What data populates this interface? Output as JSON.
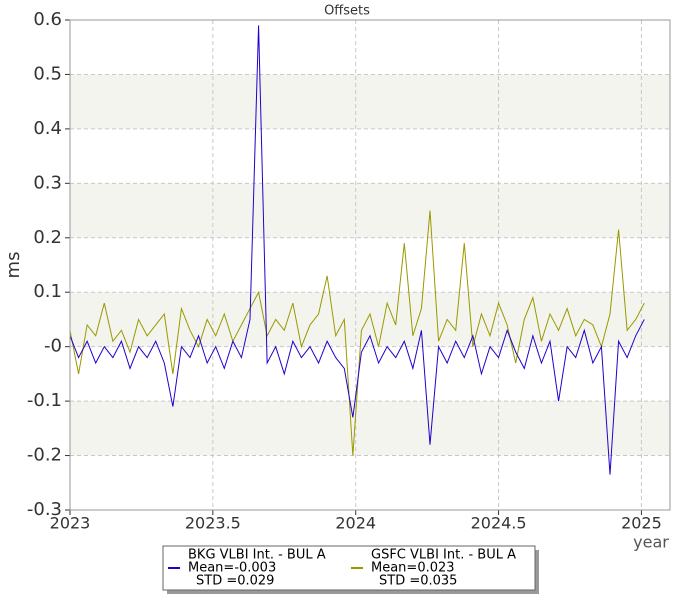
{
  "chart_data": {
    "type": "line",
    "title": "Offsets",
    "x_label": "year",
    "y_label": "ms",
    "xlim": [
      2023,
      2025.1
    ],
    "ylim": [
      -0.3,
      0.6
    ],
    "xticks": [
      2023,
      2023.5,
      2024,
      2024.5,
      2025
    ],
    "yticks": [
      0.6,
      0.5,
      0.4,
      0.3,
      0.2,
      0.1,
      {
        "value": 0,
        "label": "-0"
      },
      -0.1,
      -0.2,
      -0.3
    ],
    "grid": true,
    "legend": "bottom",
    "x": [
      2023.0,
      2023.03,
      2023.06,
      2023.09,
      2023.12,
      2023.15,
      2023.18,
      2023.21,
      2023.24,
      2023.27,
      2023.3,
      2023.33,
      2023.36,
      2023.39,
      2023.42,
      2023.45,
      2023.48,
      2023.51,
      2023.54,
      2023.57,
      2023.6,
      2023.63,
      2023.66,
      2023.69,
      2023.72,
      2023.75,
      2023.78,
      2023.81,
      2023.84,
      2023.87,
      2023.9,
      2023.93,
      2023.96,
      2023.99,
      2024.02,
      2024.05,
      2024.08,
      2024.11,
      2024.14,
      2024.17,
      2024.2,
      2024.23,
      2024.26,
      2024.29,
      2024.32,
      2024.35,
      2024.38,
      2024.41,
      2024.44,
      2024.47,
      2024.5,
      2024.53,
      2024.56,
      2024.59,
      2024.62,
      2024.65,
      2024.68,
      2024.71,
      2024.74,
      2024.77,
      2024.8,
      2024.83,
      2024.86,
      2024.89,
      2024.92,
      2024.95,
      2024.98,
      2025.01
    ],
    "series": [
      {
        "name": "GSFC VLBI Int. - BUL A",
        "mean_label": "Mean=0.023",
        "std_label": "STD =0.035",
        "color": "#999900",
        "values": [
          0.03,
          -0.05,
          0.04,
          0.02,
          0.08,
          0.01,
          0.03,
          -0.01,
          0.05,
          0.02,
          0.04,
          0.06,
          -0.05,
          0.07,
          0.03,
          0.0,
          0.05,
          0.02,
          0.06,
          0.01,
          0.04,
          0.07,
          0.1,
          0.02,
          0.05,
          0.03,
          0.08,
          0.0,
          0.04,
          0.06,
          0.13,
          0.02,
          0.05,
          -0.2,
          0.03,
          0.06,
          0.0,
          0.08,
          0.04,
          0.19,
          0.02,
          0.07,
          0.25,
          0.01,
          0.05,
          0.03,
          0.19,
          0.0,
          0.06,
          0.02,
          0.08,
          0.04,
          -0.03,
          0.05,
          0.09,
          0.01,
          0.06,
          0.03,
          0.07,
          0.02,
          0.05,
          0.04,
          0.0,
          0.06,
          0.215,
          0.03,
          0.05,
          0.08
        ]
      },
      {
        "name": "BKG VLBI Int. - BUL A",
        "mean_label": "Mean=-0.003",
        "std_label": "STD =0.029",
        "color": "#2200cc",
        "values": [
          0.02,
          -0.02,
          0.01,
          -0.03,
          0.0,
          -0.02,
          0.01,
          -0.04,
          0.0,
          -0.02,
          0.01,
          -0.03,
          -0.11,
          0.0,
          -0.02,
          0.02,
          -0.03,
          0.0,
          -0.04,
          0.01,
          -0.02,
          0.05,
          0.59,
          -0.03,
          0.0,
          -0.05,
          0.01,
          -0.02,
          0.0,
          -0.03,
          0.01,
          -0.02,
          -0.04,
          -0.13,
          -0.01,
          0.02,
          -0.03,
          0.0,
          -0.02,
          0.01,
          -0.04,
          0.03,
          -0.18,
          0.0,
          -0.03,
          0.01,
          -0.02,
          0.02,
          -0.05,
          0.0,
          -0.02,
          0.03,
          -0.01,
          -0.04,
          0.02,
          -0.03,
          0.01,
          -0.1,
          0.0,
          -0.02,
          0.03,
          -0.03,
          0.0,
          -0.235,
          0.01,
          -0.02,
          0.02,
          0.05
        ]
      }
    ]
  }
}
